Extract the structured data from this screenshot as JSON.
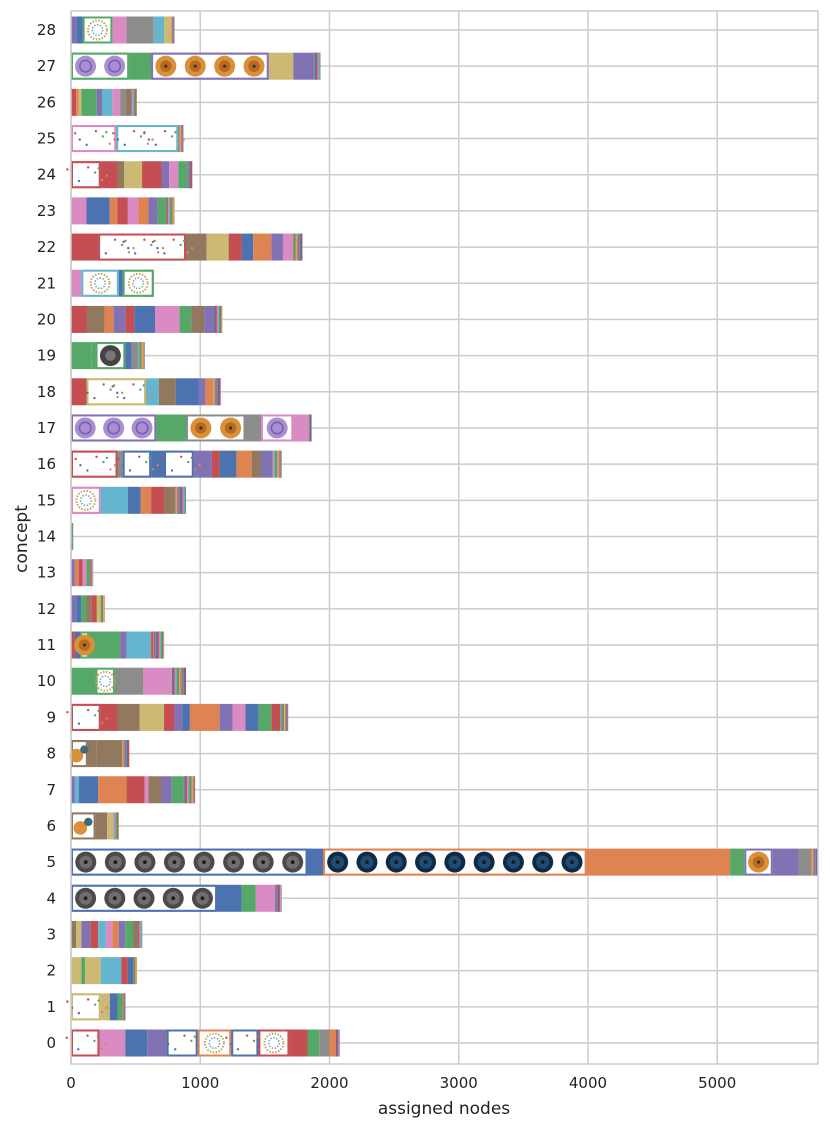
{
  "chart_data": {
    "type": "bar",
    "orientation": "horizontal",
    "stacked": true,
    "xlabel": "assigned nodes",
    "ylabel": "concept",
    "xlim": [
      0,
      5780
    ],
    "xticks": [
      0,
      1000,
      2000,
      3000,
      4000,
      5000
    ],
    "grid": true,
    "categories": [
      "0",
      "1",
      "2",
      "3",
      "4",
      "5",
      "6",
      "7",
      "8",
      "9",
      "10",
      "11",
      "12",
      "13",
      "14",
      "15",
      "16",
      "17",
      "18",
      "19",
      "20",
      "21",
      "22",
      "23",
      "24",
      "25",
      "26",
      "27",
      "28"
    ],
    "totals": [
      2080,
      420,
      510,
      550,
      1630,
      5780,
      370,
      960,
      450,
      1680,
      890,
      720,
      260,
      170,
      15,
      890,
      1630,
      1860,
      1160,
      570,
      1170,
      640,
      1790,
      800,
      940,
      870,
      510,
      1930,
      800
    ],
    "palette": [
      "#4c72b0",
      "#dd8452",
      "#55a868",
      "#c44e52",
      "#8172b3",
      "#937860",
      "#da8bc3",
      "#8c8c8c",
      "#ccb974",
      "#64b5cd"
    ],
    "segments": [
      [
        [
          0,
          220
        ],
        [
          220,
          420
        ],
        [
          420,
          590
        ],
        [
          590,
          740
        ],
        [
          740,
          980
        ],
        [
          980,
          1240
        ],
        [
          1240,
          1450
        ],
        [
          1450,
          1690
        ],
        [
          1690,
          1830
        ],
        [
          1830,
          1920
        ],
        [
          1920,
          2000
        ],
        [
          2000,
          2050
        ],
        [
          2050,
          2080
        ]
      ],
      [
        [
          0,
          230
        ],
        [
          230,
          300
        ],
        [
          300,
          360
        ],
        [
          360,
          400
        ],
        [
          400,
          420
        ]
      ],
      [
        [
          0,
          80
        ],
        [
          80,
          110
        ],
        [
          110,
          230
        ],
        [
          230,
          390
        ],
        [
          390,
          440
        ],
        [
          440,
          480
        ],
        [
          480,
          510
        ]
      ],
      [
        [
          0,
          40
        ],
        [
          40,
          80
        ],
        [
          80,
          150
        ],
        [
          150,
          210
        ],
        [
          210,
          270
        ],
        [
          270,
          320
        ],
        [
          320,
          370
        ],
        [
          370,
          420
        ],
        [
          420,
          480
        ],
        [
          480,
          520
        ],
        [
          520,
          550
        ]
      ],
      [
        [
          0,
          1130
        ],
        [
          1130,
          1320
        ],
        [
          1320,
          1430
        ],
        [
          1430,
          1580
        ],
        [
          1580,
          1630
        ]
      ],
      [
        [
          0,
          1830
        ],
        [
          1830,
          1950
        ],
        [
          1950,
          3990
        ],
        [
          3990,
          5100
        ],
        [
          5100,
          5210
        ],
        [
          5210,
          5430
        ],
        [
          5430,
          5630
        ],
        [
          5630,
          5720
        ],
        [
          5720,
          5780
        ]
      ],
      [
        [
          0,
          190
        ],
        [
          190,
          280
        ],
        [
          280,
          330
        ],
        [
          330,
          370
        ]
      ],
      [
        [
          0,
          30
        ],
        [
          30,
          60
        ],
        [
          60,
          210
        ],
        [
          210,
          430
        ],
        [
          430,
          570
        ],
        [
          570,
          600
        ],
        [
          600,
          700
        ],
        [
          700,
          780
        ],
        [
          780,
          870
        ],
        [
          870,
          960
        ]
      ],
      [
        [
          0,
          130
        ],
        [
          130,
          200
        ],
        [
          200,
          450
        ]
      ],
      [
        [
          0,
          230
        ],
        [
          230,
          360
        ],
        [
          360,
          530
        ],
        [
          530,
          720
        ],
        [
          720,
          800
        ],
        [
          800,
          860
        ],
        [
          860,
          920
        ],
        [
          920,
          1150
        ],
        [
          1150,
          1250
        ],
        [
          1250,
          1350
        ],
        [
          1350,
          1450
        ],
        [
          1450,
          1550
        ],
        [
          1550,
          1620
        ],
        [
          1620,
          1680
        ]
      ],
      [
        [
          0,
          190
        ],
        [
          190,
          340
        ],
        [
          340,
          560
        ],
        [
          560,
          780
        ],
        [
          780,
          890
        ]
      ],
      [
        [
          0,
          30
        ],
        [
          30,
          70
        ],
        [
          70,
          140
        ],
        [
          140,
          380
        ],
        [
          380,
          430
        ],
        [
          430,
          620
        ],
        [
          620,
          720
        ]
      ],
      [
        [
          0,
          40
        ],
        [
          40,
          80
        ],
        [
          80,
          120
        ],
        [
          120,
          160
        ],
        [
          160,
          200
        ],
        [
          200,
          230
        ],
        [
          230,
          260
        ]
      ],
      [
        [
          0,
          30
        ],
        [
          30,
          60
        ],
        [
          60,
          90
        ],
        [
          90,
          120
        ],
        [
          120,
          150
        ],
        [
          150,
          170
        ]
      ],
      [
        [
          0,
          15
        ]
      ],
      [
        [
          0,
          230
        ],
        [
          230,
          440
        ],
        [
          440,
          540
        ],
        [
          540,
          620
        ],
        [
          620,
          720
        ],
        [
          720,
          800
        ],
        [
          800,
          890
        ]
      ],
      [
        [
          0,
          360
        ],
        [
          360,
          400
        ],
        [
          400,
          620
        ],
        [
          620,
          720
        ],
        [
          720,
          950
        ],
        [
          950,
          1090
        ],
        [
          1090,
          1150
        ],
        [
          1150,
          1280
        ],
        [
          1280,
          1400
        ],
        [
          1400,
          1470
        ],
        [
          1470,
          1560
        ],
        [
          1560,
          1630
        ]
      ],
      [
        [
          0,
          660
        ],
        [
          660,
          890
        ],
        [
          890,
          1350
        ],
        [
          1350,
          1470
        ],
        [
          1470,
          1720
        ],
        [
          1720,
          1840
        ],
        [
          1840,
          1860
        ]
      ],
      [
        [
          0,
          120
        ],
        [
          120,
          580
        ],
        [
          580,
          680
        ],
        [
          680,
          810
        ],
        [
          810,
          990
        ],
        [
          990,
          1040
        ],
        [
          1040,
          1100
        ],
        [
          1100,
          1160
        ]
      ],
      [
        [
          0,
          160
        ],
        [
          160,
          190
        ],
        [
          190,
          420
        ],
        [
          420,
          470
        ],
        [
          470,
          520
        ],
        [
          520,
          570
        ]
      ],
      [
        [
          0,
          120
        ],
        [
          120,
          260
        ],
        [
          260,
          330
        ],
        [
          330,
          420
        ],
        [
          420,
          490
        ],
        [
          490,
          650
        ],
        [
          650,
          840
        ],
        [
          840,
          930
        ],
        [
          930,
          1030
        ],
        [
          1030,
          1110
        ],
        [
          1110,
          1170
        ]
      ],
      [
        [
          0,
          80
        ],
        [
          80,
          370
        ],
        [
          370,
          400
        ],
        [
          400,
          640
        ]
      ],
      [
        [
          0,
          210
        ],
        [
          210,
          890
        ],
        [
          890,
          1050
        ],
        [
          1050,
          1220
        ],
        [
          1220,
          1320
        ],
        [
          1320,
          1410
        ],
        [
          1410,
          1550
        ],
        [
          1550,
          1640
        ],
        [
          1640,
          1720
        ],
        [
          1720,
          1790
        ]
      ],
      [
        [
          0,
          120
        ],
        [
          120,
          300
        ],
        [
          300,
          360
        ],
        [
          360,
          440
        ],
        [
          440,
          520
        ],
        [
          520,
          600
        ],
        [
          600,
          670
        ],
        [
          670,
          740
        ],
        [
          740,
          800
        ]
      ],
      [
        [
          0,
          230
        ],
        [
          230,
          360
        ],
        [
          360,
          410
        ],
        [
          410,
          550
        ],
        [
          550,
          700
        ],
        [
          700,
          760
        ],
        [
          760,
          830
        ],
        [
          830,
          900
        ],
        [
          900,
          940
        ]
      ],
      [
        [
          0,
          350
        ],
        [
          350,
          830
        ],
        [
          830,
          870
        ]
      ],
      [
        [
          0,
          40
        ],
        [
          40,
          60
        ],
        [
          60,
          80
        ],
        [
          80,
          200
        ],
        [
          200,
          240
        ],
        [
          240,
          320
        ],
        [
          320,
          380
        ],
        [
          380,
          420
        ],
        [
          420,
          470
        ],
        [
          470,
          510
        ]
      ],
      [
        [
          0,
          450
        ],
        [
          450,
          620
        ],
        [
          620,
          1530
        ],
        [
          1530,
          1720
        ],
        [
          1720,
          1880
        ],
        [
          1880,
          1930
        ]
      ],
      [
        [
          0,
          40
        ],
        [
          40,
          90
        ],
        [
          90,
          320
        ],
        [
          320,
          430
        ],
        [
          430,
          640
        ],
        [
          640,
          720
        ],
        [
          720,
          770
        ],
        [
          770,
          800
        ]
      ]
    ],
    "segment_colors": [
      [
        3,
        6,
        0,
        4,
        1,
        4,
        4,
        8,
        3,
        2,
        7,
        1,
        5
      ],
      [
        8,
        8,
        0,
        2,
        3
      ],
      [
        8,
        2,
        8,
        9,
        3,
        0,
        1
      ],
      [
        5,
        8,
        4,
        3,
        9,
        6,
        1,
        4,
        2,
        5,
        7
      ],
      [
        7,
        0,
        2,
        6,
        3
      ],
      [
        0,
        0,
        1,
        1,
        2,
        8,
        4,
        7,
        6
      ],
      [
        5,
        5,
        8,
        3
      ],
      [
        4,
        9,
        0,
        1,
        3,
        6,
        5,
        4,
        2,
        1
      ],
      [
        5,
        5,
        5
      ],
      [
        3,
        3,
        5,
        8,
        3,
        4,
        0,
        1,
        4,
        6,
        0,
        2,
        3,
        5
      ],
      [
        2,
        8,
        7,
        6,
        2
      ],
      [
        3,
        0,
        5,
        2,
        4,
        9,
        3
      ],
      [
        4,
        0,
        2,
        5,
        3,
        8,
        1
      ],
      [
        4,
        1,
        3,
        6,
        2,
        8
      ],
      [
        2
      ],
      [
        6,
        9,
        0,
        1,
        3,
        5,
        4
      ],
      [
        3,
        7,
        4,
        0,
        1,
        4,
        3,
        0,
        1,
        5,
        4,
        8
      ],
      [
        4,
        2,
        8,
        7,
        0,
        6,
        2
      ],
      [
        3,
        8,
        9,
        5,
        0,
        4,
        1,
        2
      ],
      [
        2,
        2,
        5,
        0,
        7,
        8
      ],
      [
        3,
        5,
        1,
        4,
        3,
        0,
        6,
        2,
        5,
        4,
        3
      ],
      [
        6,
        9,
        0,
        2
      ],
      [
        3,
        7,
        5,
        8,
        3,
        0,
        1,
        4,
        6,
        2
      ],
      [
        6,
        0,
        1,
        3,
        6,
        1,
        4,
        2,
        5
      ],
      [
        3,
        3,
        5,
        8,
        3,
        4,
        6,
        2,
        1
      ],
      [
        6,
        9,
        1
      ],
      [
        3,
        1,
        8,
        2,
        4,
        9,
        6,
        7,
        5,
        3
      ],
      [
        2,
        2,
        4,
        8,
        4,
        7
      ],
      [
        4,
        0,
        2,
        6,
        7,
        9,
        8,
        4
      ]
    ],
    "thumbnails": [
      [
        [
          0,
          220,
          "scatter",
          3
        ],
        [
          740,
          980,
          "scatter",
          0
        ],
        [
          980,
          1240,
          "ring",
          1
        ],
        [
          1240,
          1450,
          "scatter",
          0
        ],
        [
          1450,
          1690,
          "ring",
          3
        ]
      ],
      [
        [
          0,
          230,
          "scatter",
          8
        ]
      ],
      [],
      [],
      [
        [
          0,
          1130,
          "disc",
          0
        ]
      ],
      [
        [
          0,
          1830,
          "disc",
          0
        ],
        [
          1950,
          3990,
          "disc-blue",
          1
        ],
        [
          5210,
          5430,
          "orange-ring",
          4
        ]
      ],
      [
        [
          0,
          190,
          "small",
          5
        ]
      ],
      [],
      [
        [
          0,
          130,
          "small",
          5
        ]
      ],
      [
        [
          0,
          230,
          "scatter",
          3
        ]
      ],
      [
        [
          190,
          340,
          "ring",
          2
        ]
      ],
      [
        [
          70,
          140,
          "orange-ring",
          2
        ]
      ],
      [],
      [],
      [],
      [
        [
          0,
          230,
          "ring",
          6
        ]
      ],
      [
        [
          0,
          360,
          "scatter",
          3
        ],
        [
          400,
          620,
          "scatter",
          0
        ],
        [
          720,
          950,
          "scatter",
          0
        ]
      ],
      [
        [
          0,
          660,
          "purple-ring",
          4
        ],
        [
          890,
          1350,
          "orange-ring",
          7
        ],
        [
          1470,
          1720,
          "purple-ring",
          6
        ]
      ],
      [
        [
          120,
          580,
          "scatter",
          8
        ]
      ],
      [
        [
          190,
          420,
          "dark-ring",
          2
        ]
      ],
      [],
      [
        [
          80,
          370,
          "ring",
          9
        ],
        [
          400,
          640,
          "ring",
          2
        ]
      ],
      [
        [
          210,
          890,
          "scatter",
          3
        ]
      ],
      [],
      [
        [
          0,
          230,
          "scatter",
          3
        ]
      ],
      [
        [
          0,
          350,
          "scatter",
          6
        ],
        [
          350,
          830,
          "scatter",
          9
        ]
      ],
      [],
      [
        [
          0,
          450,
          "purple-ring",
          2
        ],
        [
          620,
          1530,
          "orange-ring",
          4
        ]
      ],
      [
        [
          90,
          320,
          "ring",
          2
        ]
      ]
    ]
  }
}
